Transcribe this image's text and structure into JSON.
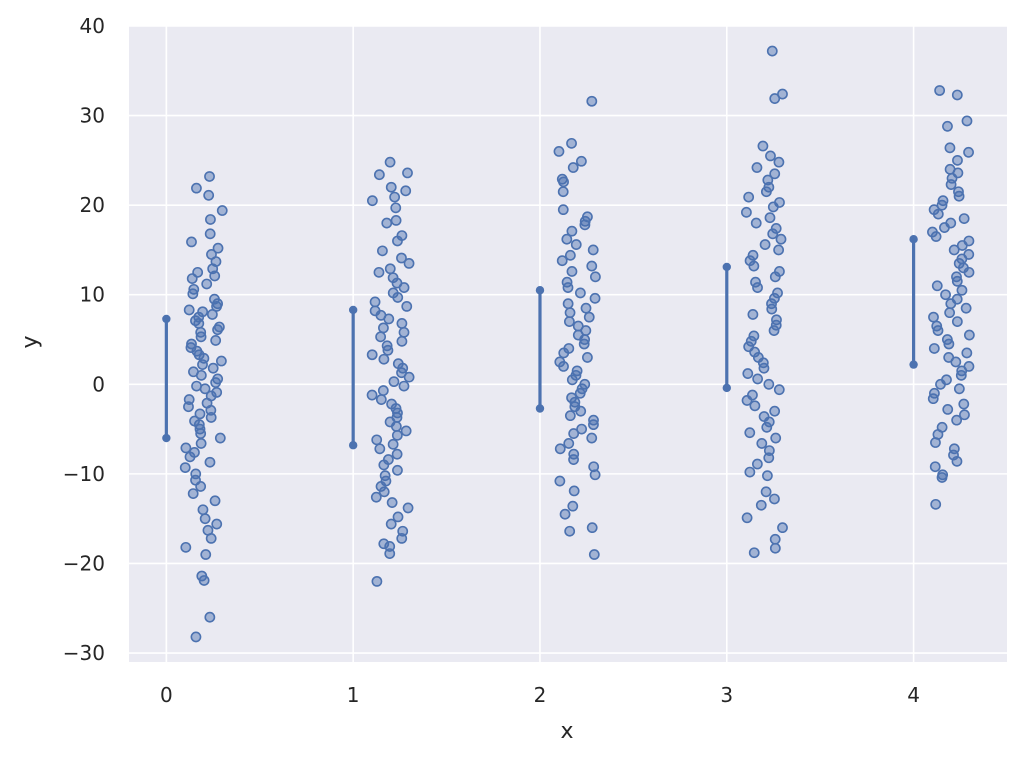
{
  "chart_data": {
    "type": "scatter",
    "title": "",
    "xlabel": "x",
    "ylabel": "y",
    "xlim": [
      -0.2,
      4.5
    ],
    "ylim": [
      -31,
      40
    ],
    "x_ticks": [
      0,
      1,
      2,
      3,
      4
    ],
    "y_ticks": [
      -30,
      -20,
      -10,
      0,
      10,
      20,
      30,
      40
    ],
    "grid": true,
    "point_color": "#4C72B0",
    "background_color": "#EAEAF2",
    "x_jitter_range": [
      0.1,
      0.3
    ],
    "ranges": [
      {
        "x": 0,
        "low": -6.0,
        "high": 7.3
      },
      {
        "x": 1,
        "low": -6.8,
        "high": 8.3
      },
      {
        "x": 2,
        "low": -2.7,
        "high": 10.5
      },
      {
        "x": 3,
        "low": -0.4,
        "high": 13.1
      },
      {
        "x": 4,
        "low": 2.2,
        "high": 16.2
      }
    ],
    "groups": [
      {
        "x": 0,
        "y": [
          23.2,
          21.9,
          21.1,
          19.4,
          18.4,
          16.8,
          15.9,
          15.2,
          14.5,
          13.7,
          12.9,
          12.5,
          12.1,
          11.8,
          11.2,
          10.6,
          10.1,
          9.5,
          9.0,
          8.7,
          8.3,
          8.1,
          7.8,
          7.5,
          7.1,
          6.8,
          6.4,
          6.1,
          5.8,
          5.3,
          4.9,
          4.5,
          4.1,
          3.7,
          3.3,
          2.9,
          2.6,
          2.2,
          1.8,
          1.4,
          1.0,
          0.6,
          0.2,
          -0.2,
          -0.5,
          -0.9,
          -1.3,
          -1.7,
          -2.1,
          -2.5,
          -2.9,
          -3.3,
          -3.7,
          -4.1,
          -4.5,
          -5.0,
          -5.5,
          -6.0,
          -6.6,
          -7.1,
          -7.6,
          -8.1,
          -8.7,
          -9.3,
          -10.0,
          -10.7,
          -11.4,
          -12.2,
          -13.0,
          -14.0,
          -15.0,
          -15.6,
          -16.3,
          -17.2,
          -18.2,
          -19.0,
          -21.4,
          -21.9,
          -26.0,
          -28.2
        ]
      },
      {
        "x": 1,
        "y": [
          24.8,
          23.6,
          23.4,
          22.0,
          21.6,
          20.9,
          20.5,
          19.7,
          18.3,
          18.0,
          16.6,
          16.0,
          14.9,
          14.1,
          13.5,
          12.9,
          12.5,
          11.9,
          11.3,
          10.8,
          10.2,
          9.7,
          9.2,
          8.7,
          8.2,
          7.7,
          7.3,
          6.8,
          6.3,
          5.8,
          5.3,
          4.8,
          4.3,
          3.8,
          3.3,
          2.8,
          2.3,
          1.8,
          1.3,
          0.8,
          0.3,
          -0.2,
          -0.7,
          -1.2,
          -1.7,
          -2.2,
          -2.7,
          -3.2,
          -3.7,
          -4.2,
          -4.7,
          -5.2,
          -5.7,
          -6.2,
          -6.7,
          -7.2,
          -7.8,
          -8.4,
          -9.0,
          -9.6,
          -10.2,
          -10.8,
          -11.4,
          -12.0,
          -12.6,
          -13.2,
          -13.8,
          -14.8,
          -15.6,
          -16.4,
          -17.2,
          -17.8,
          -18.1,
          -18.9,
          -22.0
        ]
      },
      {
        "x": 2,
        "y": [
          31.6,
          26.9,
          26.0,
          24.9,
          24.2,
          22.9,
          22.6,
          21.5,
          19.5,
          18.7,
          18.2,
          17.8,
          17.1,
          16.2,
          15.6,
          15.0,
          14.4,
          13.8,
          13.2,
          12.6,
          12.0,
          11.4,
          10.8,
          10.2,
          9.6,
          9.0,
          8.5,
          8.0,
          7.5,
          7.0,
          6.5,
          6.0,
          5.5,
          5.0,
          4.5,
          4.0,
          3.5,
          3.0,
          2.5,
          2.0,
          1.5,
          1.0,
          0.5,
          0.0,
          -0.5,
          -1.0,
          -1.5,
          -2.0,
          -2.5,
          -3.0,
          -3.5,
          -4.0,
          -4.5,
          -5.0,
          -5.5,
          -6.0,
          -6.6,
          -7.2,
          -7.8,
          -8.4,
          -9.2,
          -10.1,
          -10.8,
          -11.9,
          -13.6,
          -14.5,
          -16.0,
          -16.4,
          -19.0
        ]
      },
      {
        "x": 3,
        "y": [
          37.2,
          32.4,
          31.9,
          26.6,
          25.5,
          24.8,
          24.2,
          23.5,
          22.8,
          22.0,
          21.5,
          20.9,
          20.3,
          19.8,
          19.2,
          18.6,
          18.0,
          17.4,
          16.8,
          16.2,
          15.6,
          15.0,
          14.4,
          13.8,
          13.2,
          12.6,
          12.0,
          11.4,
          10.8,
          10.2,
          9.6,
          9.0,
          8.4,
          7.8,
          7.2,
          6.6,
          6.0,
          5.4,
          4.8,
          4.2,
          3.6,
          3.0,
          2.4,
          1.8,
          1.2,
          0.6,
          0.0,
          -0.6,
          -1.2,
          -1.8,
          -2.4,
          -3.0,
          -3.6,
          -4.2,
          -4.8,
          -5.4,
          -6.0,
          -6.6,
          -7.4,
          -8.2,
          -8.9,
          -9.8,
          -10.2,
          -12.0,
          -12.8,
          -13.5,
          -14.9,
          -16.0,
          -17.3,
          -18.3,
          -18.8
        ]
      },
      {
        "x": 4,
        "y": [
          32.8,
          32.3,
          29.4,
          28.8,
          26.4,
          25.9,
          25.0,
          24.0,
          23.6,
          23.0,
          22.3,
          21.5,
          21.0,
          20.5,
          20.0,
          19.5,
          19.0,
          18.5,
          18.0,
          17.5,
          17.0,
          16.5,
          16.0,
          15.5,
          15.0,
          14.5,
          14.0,
          13.5,
          13.0,
          12.5,
          12.0,
          11.5,
          11.0,
          10.5,
          10.0,
          9.5,
          9.0,
          8.5,
          8.0,
          7.5,
          7.0,
          6.5,
          6.0,
          5.5,
          5.0,
          4.5,
          4.0,
          3.5,
          3.0,
          2.5,
          2.0,
          1.5,
          1.0,
          0.5,
          0.0,
          -0.5,
          -1.0,
          -1.6,
          -2.2,
          -2.8,
          -3.4,
          -4.0,
          -4.8,
          -5.6,
          -6.5,
          -7.2,
          -7.9,
          -8.6,
          -9.2,
          -10.1,
          -10.4,
          -13.4
        ]
      }
    ]
  }
}
